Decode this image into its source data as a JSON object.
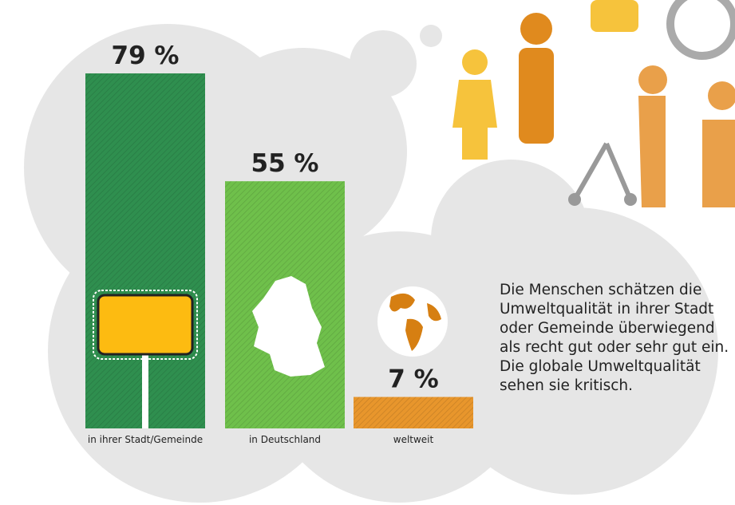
{
  "chart_data": {
    "type": "bar",
    "categories": [
      "in ihrer Stadt/Gemeinde",
      "in Deutschland",
      "weltweit"
    ],
    "values": [
      79,
      55,
      7
    ],
    "value_labels": [
      "79 %",
      "55 %",
      "7 %"
    ],
    "colors": [
      "#2f8f4f",
      "#6fc04b",
      "#e8962c"
    ],
    "text": "Die Menschen schätzen die Umweltqualität in ihrer Stadt oder Gemeinde überwiegend als recht gut oder sehr gut ein. Die globale Umweltqualität sehen sie kritisch."
  }
}
